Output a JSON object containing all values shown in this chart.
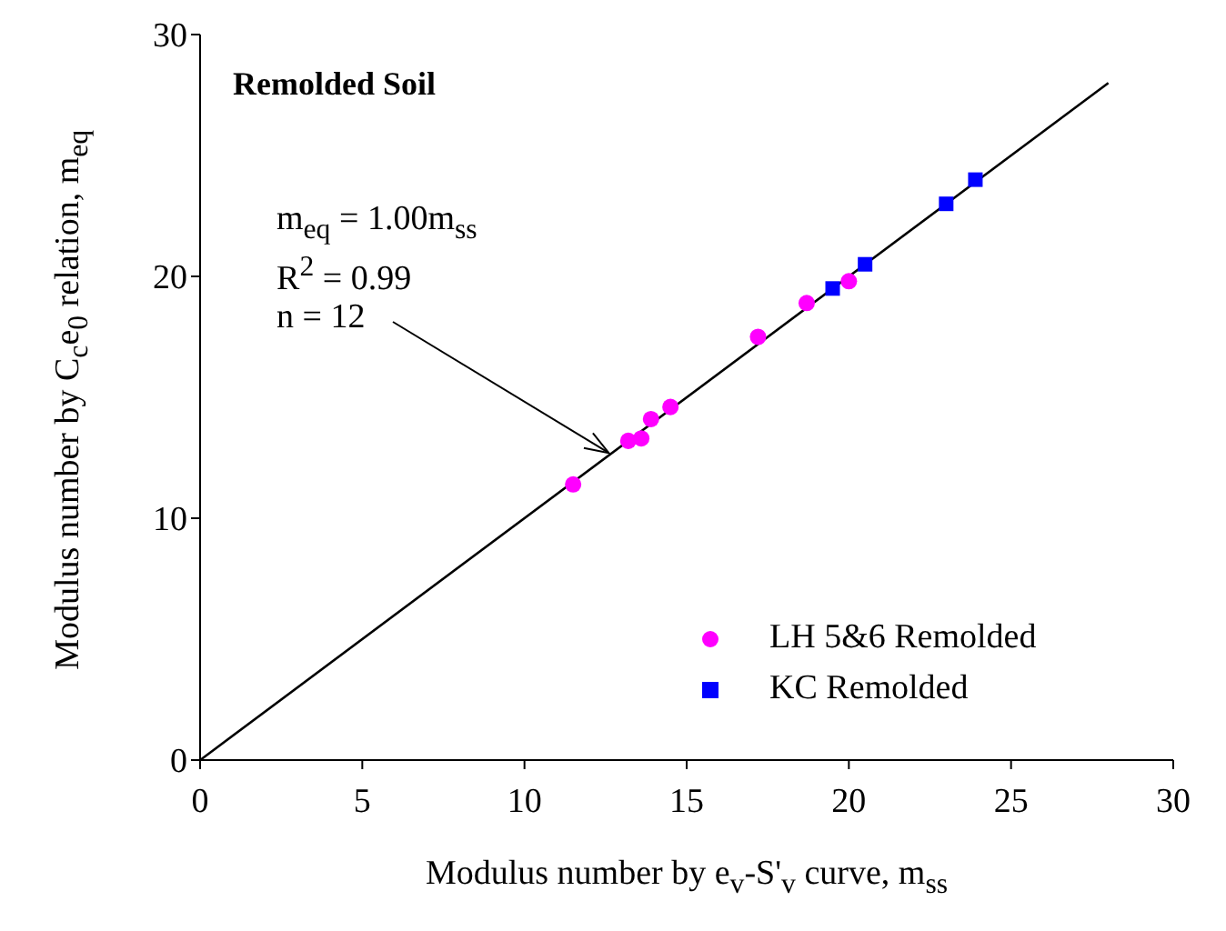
{
  "chart_data": {
    "type": "scatter",
    "title": "Remolded Soil",
    "xlabel": "Modulus number by e$_{v}$-S'$_{v}$ curve, m$_{ss}$",
    "ylabel": "Modulus number by C$_{c}$e$_{0}$ relation, m$_{eq}$",
    "xlim": [
      0,
      30
    ],
    "ylim": [
      0,
      30
    ],
    "xticks": [
      0,
      5,
      10,
      15,
      20,
      25,
      30
    ],
    "yticks": [
      0,
      10,
      20,
      30
    ],
    "grid": false,
    "legend": "bottom right",
    "annotations": [
      "m$_{eq}$ = 1.00m$_{ss}$",
      "R$^{2}$ = 0.99",
      {
        "text": "n = 12",
        "x": 12.6,
        "y": 12.7
      }
    ],
    "series": [
      {
        "name": "LH 5&6 Remolded",
        "color": "#ff00ff",
        "marker": "circle",
        "x": [
          11.5,
          13.2,
          13.6,
          13.9,
          14.5,
          17.2,
          18.7,
          20.0
        ],
        "values": [
          11.4,
          13.2,
          13.3,
          14.1,
          14.6,
          17.5,
          18.9,
          19.8
        ]
      },
      {
        "name": "KC Remolded",
        "color": "#0000ff",
        "marker": "square",
        "x": [
          19.5,
          20.5,
          23.0,
          23.9
        ],
        "values": [
          19.5,
          20.5,
          23.0,
          24.0
        ]
      },
      {
        "type": "line",
        "color": "#000000",
        "marker": "none",
        "x": [
          0,
          28
        ],
        "values": [
          0,
          28
        ]
      }
    ]
  }
}
